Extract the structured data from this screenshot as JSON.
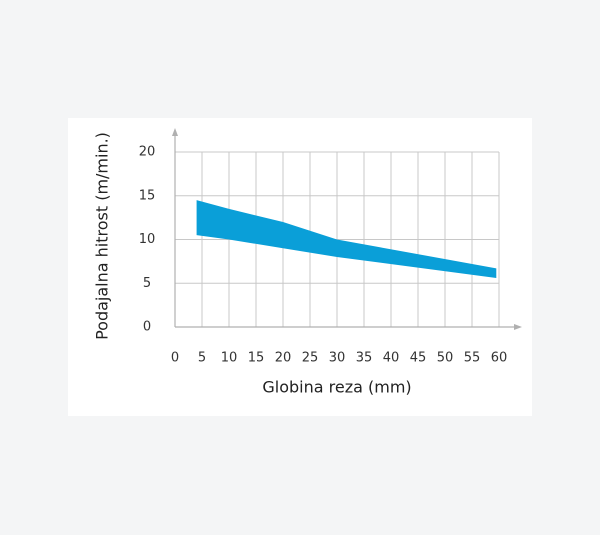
{
  "chart_data": {
    "type": "range-area",
    "x_label": "Globina reza (mm)",
    "y_label": "Podajalna hitrost (m/min.)",
    "x": [
      4,
      10,
      20,
      30,
      59.5
    ],
    "series": [
      {
        "color": "#0a9fd8",
        "values": [
          10.5,
          10,
          9,
          8,
          5.6
        ]
      },
      {
        "color": "#0a9fd8",
        "values": [
          14.5,
          13.5,
          12,
          10,
          6.7
        ]
      }
    ],
    "xlim": [
      0,
      60
    ],
    "xticks": [
      0,
      5,
      10,
      15,
      20,
      25,
      30,
      35,
      40,
      45,
      50,
      55,
      60
    ],
    "ylim": [
      0,
      20
    ],
    "yticks": [
      0,
      5,
      10,
      15,
      20
    ],
    "grid": true
  }
}
